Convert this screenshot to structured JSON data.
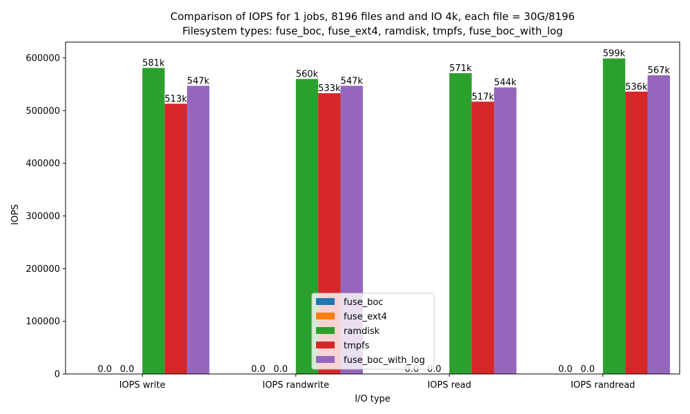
{
  "chart_data": {
    "type": "bar",
    "title": "Comparison of IOPS for 1 jobs, 8196 files and  and IO 4k, each file = 30G/8196",
    "subtitle": "Filesystem types: fuse_boc, fuse_ext4, ramdisk, tmpfs, fuse_boc_with_log",
    "xlabel": "I/O type",
    "ylabel": "IOPS",
    "ylim": [
      0,
      630000
    ],
    "yticks": [
      0,
      100000,
      200000,
      300000,
      400000,
      500000,
      600000
    ],
    "ytick_labels": [
      "0",
      "100000",
      "200000",
      "300000",
      "400000",
      "500000",
      "600000"
    ],
    "categories": [
      "IOPS write",
      "IOPS randwrite",
      "IOPS read",
      "IOPS randread"
    ],
    "legend_position": "bottom-center",
    "grid": false,
    "series": [
      {
        "name": "fuse_boc",
        "color": "#1f77b4",
        "values": [
          0,
          0,
          0,
          0
        ],
        "labels": [
          "0.0",
          "0.0",
          "0.0",
          "0.0"
        ]
      },
      {
        "name": "fuse_ext4",
        "color": "#ff7f0e",
        "values": [
          0,
          0,
          0,
          0
        ],
        "labels": [
          "0.0",
          "0.0",
          "0.0",
          "0.0"
        ]
      },
      {
        "name": "ramdisk",
        "color": "#2ca02c",
        "values": [
          581000,
          560000,
          571000,
          599000
        ],
        "labels": [
          "581k",
          "560k",
          "571k",
          "599k"
        ]
      },
      {
        "name": "tmpfs",
        "color": "#d62728",
        "values": [
          513000,
          533000,
          517000,
          536000
        ],
        "labels": [
          "513k",
          "533k",
          "517k",
          "536k"
        ]
      },
      {
        "name": "fuse_boc_with_log",
        "color": "#9467bd",
        "values": [
          547000,
          547000,
          544000,
          567000
        ],
        "labels": [
          "547k",
          "547k",
          "544k",
          "567k"
        ]
      }
    ]
  }
}
